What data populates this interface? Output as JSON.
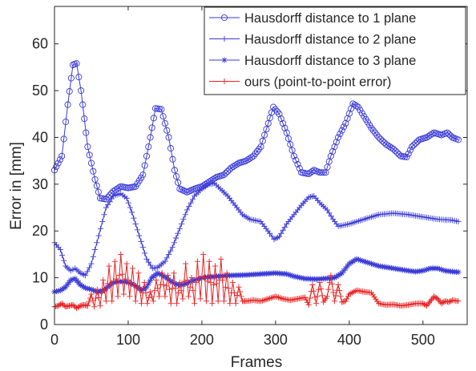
{
  "chart_data": {
    "type": "line",
    "xlabel": "Frames",
    "ylabel": "Error in [mm]",
    "xlim": [
      0,
      560
    ],
    "ylim": [
      0,
      68
    ],
    "xticks": [
      0,
      100,
      200,
      300,
      400,
      500
    ],
    "yticks": [
      0,
      10,
      20,
      30,
      40,
      50,
      60
    ],
    "grid": false,
    "legend_position": "top-right",
    "series": [
      {
        "name": "Hausdorff distance to 1 plane",
        "color": "#3a3ad8",
        "marker": "circle",
        "points": [
          [
            0,
            33
          ],
          [
            10,
            36
          ],
          [
            18,
            47
          ],
          [
            25,
            55.5
          ],
          [
            30,
            55.8
          ],
          [
            36,
            50
          ],
          [
            45,
            38
          ],
          [
            55,
            31
          ],
          [
            62,
            27
          ],
          [
            70,
            26.8
          ],
          [
            80,
            28.5
          ],
          [
            90,
            29.5
          ],
          [
            100,
            29.2
          ],
          [
            110,
            29.5
          ],
          [
            120,
            32
          ],
          [
            130,
            40
          ],
          [
            137,
            46.2
          ],
          [
            145,
            46
          ],
          [
            155,
            40
          ],
          [
            163,
            33
          ],
          [
            170,
            29
          ],
          [
            180,
            28.3
          ],
          [
            190,
            29
          ],
          [
            200,
            29.5
          ],
          [
            210,
            30.5
          ],
          [
            220,
            31.5
          ],
          [
            230,
            32
          ],
          [
            240,
            33.5
          ],
          [
            250,
            34.5
          ],
          [
            260,
            35
          ],
          [
            270,
            36
          ],
          [
            280,
            38
          ],
          [
            290,
            43
          ],
          [
            297,
            46.5
          ],
          [
            305,
            45
          ],
          [
            315,
            41
          ],
          [
            325,
            36
          ],
          [
            335,
            32.5
          ],
          [
            345,
            32.2
          ],
          [
            352,
            33
          ],
          [
            360,
            32.5
          ],
          [
            368,
            32.5
          ],
          [
            375,
            36
          ],
          [
            385,
            40
          ],
          [
            395,
            43
          ],
          [
            405,
            47.2
          ],
          [
            412,
            46.5
          ],
          [
            420,
            44.5
          ],
          [
            430,
            42
          ],
          [
            440,
            40
          ],
          [
            450,
            38.5
          ],
          [
            460,
            37.5
          ],
          [
            470,
            36
          ],
          [
            478,
            35.8
          ],
          [
            485,
            38
          ],
          [
            495,
            39.5
          ],
          [
            505,
            40
          ],
          [
            515,
            41
          ],
          [
            525,
            40.5
          ],
          [
            533,
            41
          ],
          [
            540,
            40
          ],
          [
            548,
            39.5
          ]
        ]
      },
      {
        "name": "Hausdorff distance to 2 plane",
        "color": "#3a3ad8",
        "marker": "plus",
        "points": [
          [
            0,
            17.5
          ],
          [
            8,
            16
          ],
          [
            15,
            12.5
          ],
          [
            22,
            11.5
          ],
          [
            28,
            12
          ],
          [
            35,
            11
          ],
          [
            42,
            10.5
          ],
          [
            50,
            13
          ],
          [
            60,
            19
          ],
          [
            70,
            25
          ],
          [
            80,
            27.5
          ],
          [
            90,
            28
          ],
          [
            98,
            27
          ],
          [
            105,
            24
          ],
          [
            115,
            19
          ],
          [
            125,
            14
          ],
          [
            133,
            12
          ],
          [
            140,
            12.2
          ],
          [
            150,
            13.5
          ],
          [
            160,
            16.5
          ],
          [
            170,
            20.5
          ],
          [
            180,
            24.5
          ],
          [
            190,
            27.5
          ],
          [
            200,
            29
          ],
          [
            210,
            30
          ],
          [
            217,
            30.2
          ],
          [
            225,
            29
          ],
          [
            235,
            27.5
          ],
          [
            245,
            25.5
          ],
          [
            255,
            23.5
          ],
          [
            265,
            22.5
          ],
          [
            280,
            22
          ],
          [
            292,
            19.5
          ],
          [
            298,
            18.2
          ],
          [
            305,
            18.8
          ],
          [
            315,
            21.5
          ],
          [
            325,
            23.5
          ],
          [
            335,
            25.5
          ],
          [
            345,
            27.2
          ],
          [
            352,
            27.5
          ],
          [
            360,
            26
          ],
          [
            370,
            24.5
          ],
          [
            378,
            22.5
          ],
          [
            385,
            21
          ],
          [
            400,
            21.5
          ],
          [
            420,
            22.5
          ],
          [
            440,
            23.5
          ],
          [
            460,
            23.8
          ],
          [
            480,
            23.5
          ],
          [
            500,
            23
          ],
          [
            520,
            22.5
          ],
          [
            540,
            22.3
          ],
          [
            548,
            22
          ]
        ]
      },
      {
        "name": "Hausdorff distance to 3 plane",
        "color": "#3a3ad8",
        "marker": "star",
        "points": [
          [
            0,
            7
          ],
          [
            8,
            7.3
          ],
          [
            15,
            8
          ],
          [
            22,
            9.5
          ],
          [
            28,
            9.8
          ],
          [
            35,
            8.5
          ],
          [
            42,
            7.8
          ],
          [
            50,
            7.5
          ],
          [
            58,
            7
          ],
          [
            65,
            7.2
          ],
          [
            72,
            8
          ],
          [
            80,
            9
          ],
          [
            90,
            9.2
          ],
          [
            100,
            9
          ],
          [
            110,
            8.3
          ],
          [
            118,
            7.3
          ],
          [
            125,
            8
          ],
          [
            132,
            10
          ],
          [
            140,
            11
          ],
          [
            150,
            10.2
          ],
          [
            160,
            9
          ],
          [
            168,
            8.5
          ],
          [
            175,
            8.5
          ],
          [
            182,
            9
          ],
          [
            190,
            9.5
          ],
          [
            200,
            10
          ],
          [
            220,
            10.3
          ],
          [
            240,
            10.5
          ],
          [
            260,
            10.6
          ],
          [
            280,
            10.8
          ],
          [
            300,
            11
          ],
          [
            315,
            10.8
          ],
          [
            325,
            10.3
          ],
          [
            340,
            9.8
          ],
          [
            355,
            9.7
          ],
          [
            365,
            9.8
          ],
          [
            380,
            10
          ],
          [
            390,
            11
          ],
          [
            400,
            13
          ],
          [
            410,
            14
          ],
          [
            420,
            13.5
          ],
          [
            430,
            13
          ],
          [
            440,
            12.5
          ],
          [
            460,
            12
          ],
          [
            480,
            11.5
          ],
          [
            490,
            11.3
          ],
          [
            500,
            11.5
          ],
          [
            510,
            12
          ],
          [
            520,
            12
          ],
          [
            530,
            11.5
          ],
          [
            540,
            11.3
          ],
          [
            548,
            11.2
          ]
        ]
      },
      {
        "name": "ours (point-to-point error)",
        "color": "#e82222",
        "marker": "plus",
        "points": [
          [
            0,
            3.8
          ],
          [
            5,
            4
          ],
          [
            10,
            4.5
          ],
          [
            15,
            3.8
          ],
          [
            20,
            4
          ],
          [
            25,
            4.2
          ],
          [
            30,
            3.5
          ],
          [
            35,
            4
          ],
          [
            40,
            4.2
          ],
          [
            45,
            4
          ],
          [
            50,
            6.5
          ],
          [
            54,
            3.8
          ],
          [
            58,
            7.5
          ],
          [
            62,
            4
          ],
          [
            66,
            9.5
          ],
          [
            70,
            5
          ],
          [
            74,
            12.5
          ],
          [
            78,
            5
          ],
          [
            82,
            13.5
          ],
          [
            86,
            6
          ],
          [
            90,
            15
          ],
          [
            94,
            6.5
          ],
          [
            98,
            13
          ],
          [
            102,
            6
          ],
          [
            106,
            12
          ],
          [
            110,
            5
          ],
          [
            114,
            11
          ],
          [
            118,
            4.5
          ],
          [
            122,
            9
          ],
          [
            126,
            4.5
          ],
          [
            130,
            7
          ],
          [
            134,
            5
          ],
          [
            138,
            9.5
          ],
          [
            142,
            6
          ],
          [
            146,
            11
          ],
          [
            150,
            6
          ],
          [
            154,
            10.5
          ],
          [
            158,
            4.5
          ],
          [
            162,
            11
          ],
          [
            166,
            4.5
          ],
          [
            170,
            9
          ],
          [
            174,
            5.5
          ],
          [
            178,
            13
          ],
          [
            182,
            6
          ],
          [
            186,
            10
          ],
          [
            190,
            4.5
          ],
          [
            194,
            13.5
          ],
          [
            198,
            5.5
          ],
          [
            202,
            15
          ],
          [
            206,
            5
          ],
          [
            210,
            13.5
          ],
          [
            214,
            4.5
          ],
          [
            218,
            12.5
          ],
          [
            222,
            5
          ],
          [
            226,
            14
          ],
          [
            230,
            5
          ],
          [
            234,
            11
          ],
          [
            238,
            4.5
          ],
          [
            242,
            9
          ],
          [
            246,
            4.5
          ],
          [
            250,
            8
          ],
          [
            255,
            5
          ],
          [
            260,
            5
          ],
          [
            270,
            5.2
          ],
          [
            280,
            5
          ],
          [
            290,
            5.5
          ],
          [
            300,
            6
          ],
          [
            310,
            5.5
          ],
          [
            320,
            5.2
          ],
          [
            330,
            5.5
          ],
          [
            340,
            5.8
          ],
          [
            345,
            4.2
          ],
          [
            350,
            8.5
          ],
          [
            355,
            4.5
          ],
          [
            360,
            9
          ],
          [
            365,
            4.8
          ],
          [
            370,
            6
          ],
          [
            375,
            10.5
          ],
          [
            380,
            5
          ],
          [
            385,
            8.5
          ],
          [
            390,
            4.8
          ],
          [
            395,
            5
          ],
          [
            400,
            6.5
          ],
          [
            410,
            7.3
          ],
          [
            420,
            7
          ],
          [
            430,
            6.8
          ],
          [
            440,
            4.5
          ],
          [
            450,
            4.2
          ],
          [
            460,
            4.3
          ],
          [
            470,
            4
          ],
          [
            480,
            4.2
          ],
          [
            490,
            4.5
          ],
          [
            500,
            4.5
          ],
          [
            505,
            4
          ],
          [
            510,
            5
          ],
          [
            515,
            6
          ],
          [
            520,
            5.5
          ],
          [
            525,
            4.5
          ],
          [
            530,
            5
          ],
          [
            535,
            4.8
          ],
          [
            540,
            5.2
          ],
          [
            548,
            5
          ]
        ]
      }
    ]
  }
}
